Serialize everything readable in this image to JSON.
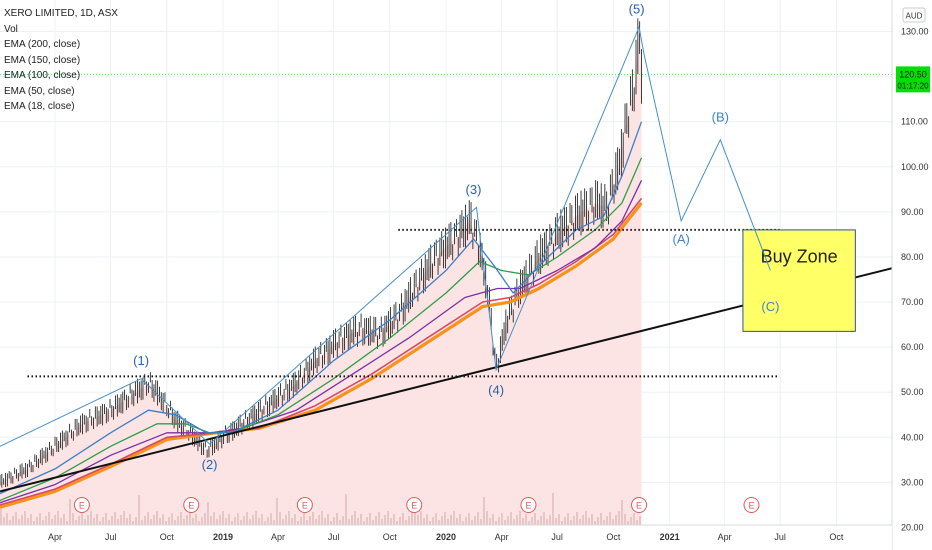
{
  "header": {
    "symbol_title": "XERO LIMITED, 1D, ASX",
    "indicators": [
      "Vol",
      "EMA (200, close)",
      "EMA (150, close)",
      "EMA (100, close)",
      "EMA (50, close)",
      "EMA (18, close)"
    ]
  },
  "currency_badge": "AUD",
  "price_tag": {
    "price": "120.50",
    "countdown": "01:17:20"
  },
  "colors": {
    "price_tag": "#00e000",
    "ema18": "#3d7fc7",
    "ema50": "#2e9e4c",
    "ema100": "#7b2fa8",
    "ema150": "#d9476a",
    "ema200": "#f7931a",
    "area_fill": "#fde4e4",
    "wave_line": "#4a90c8",
    "trendline": "#111111",
    "buy_zone": "#ffff66",
    "buy_zone_border": "#2f4f9f"
  },
  "chart_data": {
    "type": "line",
    "title": "",
    "xlabel": "",
    "ylabel": "",
    "ylim": [
      15,
      137
    ],
    "y_ticks": [
      "20.00",
      "30.00",
      "40.00",
      "50.00",
      "60.00",
      "70.00",
      "80.00",
      "90.00",
      "100.00",
      "110.00",
      "120.00",
      "130.00"
    ],
    "x_ticks": [
      "Apr",
      "Jul",
      "Oct",
      "2019",
      "Apr",
      "Jul",
      "Oct",
      "2020",
      "Apr",
      "Jul",
      "Oct",
      "2021",
      "Apr",
      "Jul",
      "Oct"
    ],
    "x_tick_dates": [
      "2018-04-01",
      "2018-07-01",
      "2018-10-01",
      "2019-01-01",
      "2019-04-01",
      "2019-07-01",
      "2019-10-01",
      "2020-01-01",
      "2020-04-01",
      "2020-07-01",
      "2020-10-01",
      "2021-01-01",
      "2021-04-01",
      "2021-07-01",
      "2021-10-01"
    ],
    "series": [
      {
        "key": "close",
        "x": [
          "2018-01-01",
          "2018-02-15",
          "2018-04-01",
          "2018-05-15",
          "2018-07-01",
          "2018-08-01",
          "2018-09-01",
          "2018-09-15",
          "2018-10-15",
          "2018-11-15",
          "2018-12-05",
          "2019-01-01",
          "2019-02-01",
          "2019-03-15",
          "2019-05-01",
          "2019-06-01",
          "2019-07-15",
          "2019-08-15",
          "2019-09-15",
          "2019-10-15",
          "2019-11-15",
          "2019-12-15",
          "2020-01-15",
          "2020-02-10",
          "2020-02-25",
          "2020-03-10",
          "2020-03-23",
          "2020-04-10",
          "2020-05-01",
          "2020-06-01",
          "2020-07-01",
          "2020-08-01",
          "2020-09-01",
          "2020-09-20",
          "2020-10-10",
          "2020-10-25",
          "2020-11-05",
          "2020-11-12",
          "2020-11-16"
        ],
        "values": [
          30,
          33,
          38,
          43,
          46,
          49,
          52,
          50,
          44,
          40,
          37,
          40,
          43,
          47,
          52,
          57,
          62,
          64,
          63,
          67,
          74,
          80,
          84,
          88,
          82,
          72,
          55,
          66,
          73,
          80,
          85,
          89,
          92,
          91,
          100,
          112,
          118,
          130,
          120.5
        ]
      },
      {
        "key": "ema18",
        "x": [
          "2018-01-01",
          "2018-04-01",
          "2018-07-01",
          "2018-09-01",
          "2018-10-15",
          "2018-12-05",
          "2019-01-15",
          "2019-04-01",
          "2019-07-01",
          "2019-10-01",
          "2020-01-01",
          "2020-02-15",
          "2020-03-20",
          "2020-04-20",
          "2020-06-01",
          "2020-08-01",
          "2020-09-15",
          "2020-10-15",
          "2020-11-16"
        ],
        "values": [
          27.5,
          33,
          41,
          46,
          45,
          41,
          41,
          46,
          57,
          66,
          77,
          84,
          78,
          72,
          78,
          86,
          89,
          98,
          110
        ]
      },
      {
        "key": "ema50",
        "x": [
          "2018-01-01",
          "2018-04-01",
          "2018-07-01",
          "2018-09-15",
          "2018-11-01",
          "2018-12-10",
          "2019-01-15",
          "2019-04-01",
          "2019-07-01",
          "2019-10-01",
          "2020-01-01",
          "2020-02-25",
          "2020-04-01",
          "2020-05-15",
          "2020-07-01",
          "2020-09-01",
          "2020-10-15",
          "2020-11-16"
        ],
        "values": [
          26,
          31,
          38,
          43,
          43,
          41,
          41,
          45,
          53,
          62,
          72,
          79,
          77,
          76,
          80,
          86,
          92,
          102
        ]
      },
      {
        "key": "ema100",
        "x": [
          "2018-01-01",
          "2018-04-01",
          "2018-07-01",
          "2018-10-01",
          "2018-12-15",
          "2019-02-01",
          "2019-05-01",
          "2019-08-01",
          "2019-11-01",
          "2020-02-01",
          "2020-03-25",
          "2020-05-01",
          "2020-07-01",
          "2020-09-01",
          "2020-10-15",
          "2020-11-16"
        ],
        "values": [
          25.5,
          29.5,
          36,
          41,
          41,
          42,
          46,
          54,
          62,
          71,
          73,
          73,
          77,
          82,
          88,
          97
        ]
      },
      {
        "key": "ema150",
        "x": [
          "2018-01-01",
          "2018-04-01",
          "2018-07-01",
          "2018-10-01",
          "2018-12-20",
          "2019-03-01",
          "2019-06-01",
          "2019-09-01",
          "2019-12-01",
          "2020-03-01",
          "2020-04-15",
          "2020-06-01",
          "2020-08-01",
          "2020-10-01",
          "2020-11-16"
        ],
        "values": [
          25,
          28.5,
          34,
          40,
          41,
          42,
          47,
          54,
          62,
          70,
          71,
          74,
          79,
          85,
          93
        ]
      },
      {
        "key": "ema200",
        "x": [
          "2018-01-01",
          "2018-04-01",
          "2018-07-01",
          "2018-10-01",
          "2018-12-20",
          "2019-03-01",
          "2019-06-01",
          "2019-09-01",
          "2019-12-01",
          "2020-03-01",
          "2020-04-15",
          "2020-06-01",
          "2020-08-01",
          "2020-10-01",
          "2020-11-16"
        ],
        "values": [
          24.5,
          28,
          33.5,
          39.5,
          41,
          42,
          46,
          53,
          61,
          69,
          70,
          73,
          78,
          84,
          92
        ]
      },
      {
        "key": "wave",
        "x": [
          "2018-01-01",
          "2018-08-20",
          "2018-12-10",
          "2020-02-20",
          "2020-03-23",
          "2020-11-12",
          "2020-11-20",
          "2021-01-20",
          "2021-03-25",
          "2021-06-15"
        ],
        "values": [
          38,
          53,
          38.5,
          91,
          55,
          131,
          125,
          88,
          106,
          77
        ]
      },
      {
        "key": "trendline",
        "x": [
          "2018-01-01",
          "2021-12-31"
        ],
        "values": [
          28,
          77.5
        ]
      }
    ],
    "levels": [
      {
        "name": "resistance-1",
        "value": 53.5,
        "x_start": "2018-02-15",
        "x_end": "2021-06-30"
      },
      {
        "name": "resistance-2",
        "value": 86,
        "x_start": "2019-10-15",
        "x_end": "2021-06-30"
      },
      {
        "name": "current-price",
        "value": 120.5
      }
    ],
    "zone": {
      "label": "Buy Zone",
      "x_start": "2021-05-01",
      "x_end": "2021-11-01",
      "y_low": 63.5,
      "y_high": 86
    },
    "annotations": [
      {
        "label": "(1)",
        "x": "2018-08-20",
        "y": 56
      },
      {
        "label": "(2)",
        "x": "2018-12-10",
        "y": 33
      },
      {
        "label": "(3)",
        "x": "2020-02-15",
        "y": 94
      },
      {
        "label": "(4)",
        "x": "2020-03-23",
        "y": 49.5
      },
      {
        "label": "(5)",
        "x": "2020-11-08",
        "y": 134
      },
      {
        "label": "(A)",
        "x": "2021-01-20",
        "y": 83
      },
      {
        "label": "(B)",
        "x": "2021-03-25",
        "y": 110
      },
      {
        "label": "(C)",
        "x": "2021-06-15",
        "y": 68
      }
    ],
    "earnings_markers": {
      "label": "E",
      "dates": [
        "2018-05-15",
        "2018-11-10",
        "2019-05-15",
        "2019-11-10",
        "2020-05-15",
        "2020-11-12",
        "2021-05-15"
      ]
    }
  }
}
